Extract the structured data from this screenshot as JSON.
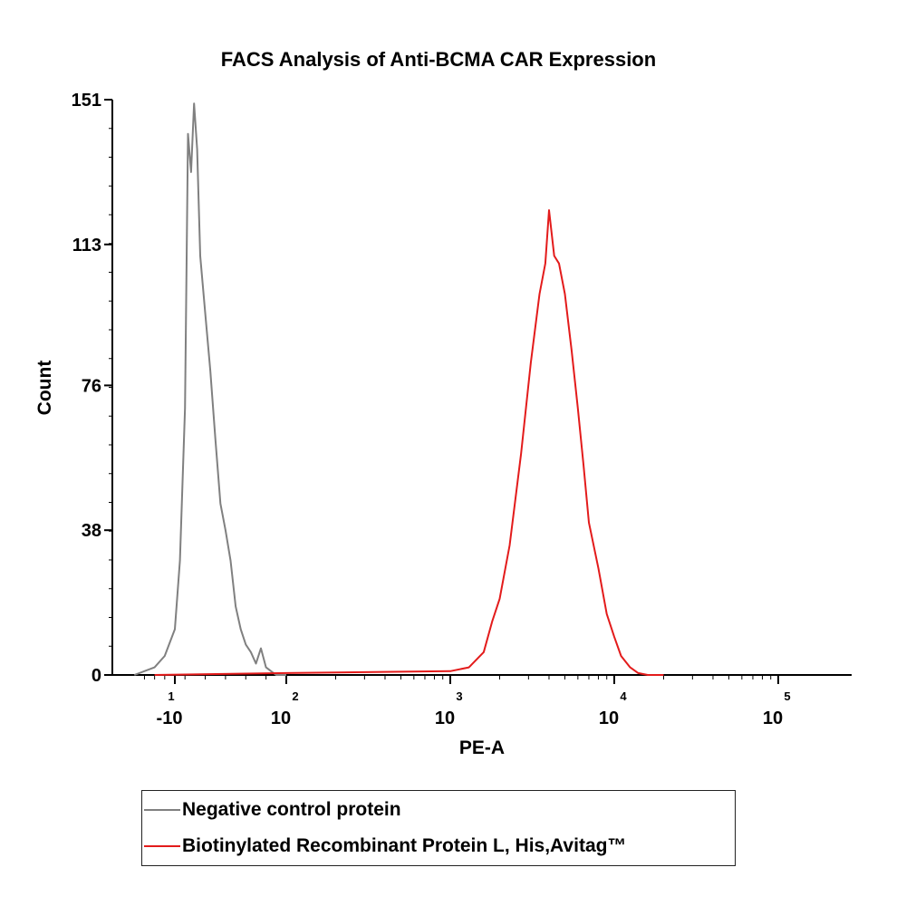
{
  "chart_data": {
    "type": "line",
    "title": "FACS Analysis of Anti-BCMA CAR Expression",
    "xlabel": "PE-A",
    "ylabel": "Count",
    "xscale": "biexponential (log)",
    "ylim": [
      0,
      151
    ],
    "yticks": [
      0,
      38,
      76,
      113,
      151
    ],
    "xticks": [
      {
        "value": -10,
        "base": "-10",
        "exp": "1"
      },
      {
        "value": 100,
        "base": "10",
        "exp": "2"
      },
      {
        "value": 1000,
        "base": "10",
        "exp": "3"
      },
      {
        "value": 10000,
        "base": "10",
        "exp": "4"
      },
      {
        "value": 100000,
        "base": "10",
        "exp": "5"
      }
    ],
    "legend_position": "bottom",
    "series": [
      {
        "name": "Negative control protein",
        "color": "#808080",
        "x": [
          -50,
          -30,
          -20,
          -10,
          -5,
          0,
          3,
          6,
          9,
          12,
          15,
          20,
          25,
          30,
          35,
          40,
          45,
          50,
          55,
          60,
          65,
          70,
          75,
          80,
          85,
          90,
          95,
          100
        ],
        "y": [
          0,
          2,
          5,
          12,
          30,
          70,
          142,
          132,
          150,
          138,
          110,
          95,
          80,
          62,
          45,
          38,
          30,
          18,
          12,
          8,
          6,
          3,
          7,
          2,
          1,
          0,
          0,
          0
        ]
      },
      {
        "name": "Biotinylated Recombinant Protein L, His,Avitag™",
        "color": "#e31b1b",
        "x": [
          -30,
          100,
          1000,
          1300,
          1600,
          1800,
          2000,
          2300,
          2700,
          3100,
          3500,
          3800,
          4000,
          4300,
          4600,
          5000,
          5500,
          6000,
          6500,
          7000,
          8000,
          9000,
          10000,
          11000,
          12500,
          14000,
          16000,
          20000
        ],
        "y": [
          0,
          0.5,
          1,
          2,
          6,
          14,
          20,
          34,
          58,
          82,
          100,
          108,
          122,
          110,
          108,
          100,
          85,
          70,
          55,
          40,
          28,
          16,
          10,
          5,
          2,
          0.5,
          0,
          0
        ]
      }
    ]
  }
}
